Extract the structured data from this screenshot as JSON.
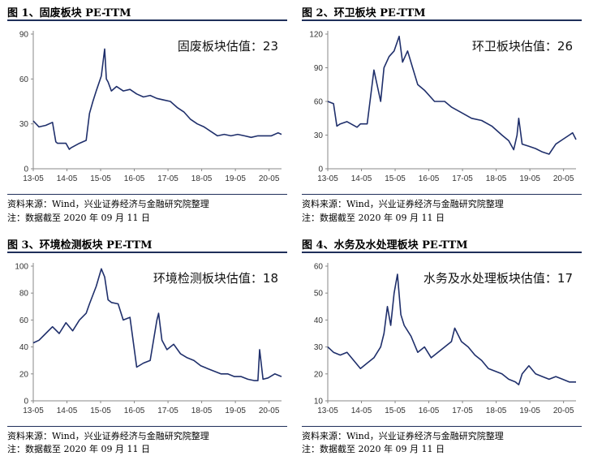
{
  "colors": {
    "line": "#1f2f6b",
    "rule": "#1f2f5a",
    "axis": "#888888"
  },
  "chart_data": [
    {
      "type": "line",
      "title": "图 1、固废板块 PE-TTM",
      "annotation": "固废板块估值：23",
      "source": "资料来源：Wind，兴业证券经济与金融研究院整理",
      "note": "注：数据截至 2020 年 09 月 11 日",
      "xlabel": "",
      "ylabel": "",
      "ylim": [
        0,
        90
      ],
      "yticks": [
        0,
        30,
        60,
        90
      ],
      "xlim": [
        2013.33,
        2020.7
      ],
      "xticks": [
        "13-05",
        "14-05",
        "15-05",
        "16-05",
        "17-05",
        "18-05",
        "19-05",
        "20-05"
      ],
      "x": [
        2013.33,
        2013.5,
        2013.7,
        2013.9,
        2014.0,
        2014.05,
        2014.3,
        2014.4,
        2014.45,
        2014.7,
        2014.9,
        2015.0,
        2015.1,
        2015.2,
        2015.35,
        2015.45,
        2015.5,
        2015.55,
        2015.65,
        2015.8,
        2016.0,
        2016.2,
        2016.4,
        2016.6,
        2016.8,
        2017.0,
        2017.2,
        2017.4,
        2017.6,
        2017.8,
        2018.0,
        2018.2,
        2018.4,
        2018.6,
        2018.8,
        2019.0,
        2019.2,
        2019.4,
        2019.6,
        2019.8,
        2020.0,
        2020.2,
        2020.4,
        2020.6,
        2020.7
      ],
      "values": [
        32,
        28,
        29,
        31,
        18,
        17,
        17,
        13,
        14,
        17,
        19,
        37,
        45,
        52,
        62,
        80,
        60,
        58,
        52,
        55,
        52,
        53,
        50,
        48,
        49,
        47,
        46,
        45,
        41,
        38,
        33,
        30,
        28,
        25,
        22,
        23,
        22,
        23,
        22,
        21,
        22,
        22,
        22,
        24,
        23
      ]
    },
    {
      "type": "line",
      "title": "图 2、环卫板块 PE-TTM",
      "annotation": "环卫板块估值：26",
      "source": "资料来源：Wind，兴业证券经济与金融研究院整理",
      "note": "注：数据截至 2020 年 09 月 11 日",
      "xlabel": "",
      "ylabel": "",
      "ylim": [
        0,
        120
      ],
      "yticks": [
        0,
        30,
        60,
        90,
        120
      ],
      "xlim": [
        2013.33,
        2020.7
      ],
      "xticks": [
        "13-05",
        "14-05",
        "15-05",
        "16-05",
        "17-05",
        "18-05",
        "19-05",
        "20-05"
      ],
      "x": [
        2013.33,
        2013.5,
        2013.6,
        2013.7,
        2013.9,
        2014.2,
        2014.3,
        2014.5,
        2014.7,
        2014.9,
        2015.0,
        2015.15,
        2015.3,
        2015.45,
        2015.55,
        2015.7,
        2015.85,
        2016.0,
        2016.2,
        2016.5,
        2016.8,
        2017.0,
        2017.3,
        2017.6,
        2017.9,
        2018.2,
        2018.5,
        2018.7,
        2018.85,
        2018.95,
        2019.0,
        2019.1,
        2019.3,
        2019.5,
        2019.7,
        2019.9,
        2020.1,
        2020.3,
        2020.5,
        2020.6,
        2020.7
      ],
      "values": [
        60,
        58,
        38,
        40,
        42,
        37,
        40,
        40,
        88,
        60,
        90,
        100,
        105,
        118,
        95,
        105,
        90,
        75,
        70,
        60,
        60,
        55,
        50,
        45,
        43,
        38,
        30,
        25,
        17,
        30,
        45,
        22,
        20,
        18,
        15,
        13,
        22,
        26,
        30,
        32,
        26
      ]
    },
    {
      "type": "line",
      "title": "图 3、环境检测板块 PE-TTM",
      "annotation": "环境检测板块估值：18",
      "source": "资料来源：Wind，兴业证券经济与金融研究院整理",
      "note": "注：数据截至 2020 年 09 月 11 日",
      "xlabel": "",
      "ylabel": "",
      "ylim": [
        0,
        100
      ],
      "yticks": [
        0,
        20,
        40,
        60,
        80,
        100
      ],
      "xlim": [
        2013.33,
        2020.7
      ],
      "xticks": [
        "13-05",
        "14-05",
        "15-05",
        "16-05",
        "17-05",
        "18-05",
        "19-05",
        "20-05"
      ],
      "x": [
        2013.33,
        2013.5,
        2013.7,
        2013.9,
        2014.1,
        2014.3,
        2014.5,
        2014.7,
        2014.9,
        2015.0,
        2015.2,
        2015.35,
        2015.45,
        2015.55,
        2015.65,
        2015.85,
        2016.0,
        2016.2,
        2016.4,
        2016.6,
        2016.8,
        2017.0,
        2017.05,
        2017.15,
        2017.3,
        2017.5,
        2017.7,
        2017.9,
        2018.1,
        2018.3,
        2018.5,
        2018.7,
        2018.9,
        2019.1,
        2019.3,
        2019.5,
        2019.7,
        2019.9,
        2020.0,
        2020.05,
        2020.15,
        2020.3,
        2020.5,
        2020.7
      ],
      "values": [
        43,
        45,
        50,
        55,
        50,
        58,
        52,
        60,
        65,
        72,
        85,
        98,
        92,
        75,
        73,
        72,
        60,
        62,
        25,
        28,
        30,
        60,
        65,
        45,
        38,
        42,
        35,
        32,
        30,
        26,
        24,
        22,
        20,
        20,
        18,
        18,
        16,
        15,
        15,
        38,
        16,
        17,
        20,
        18
      ]
    },
    {
      "type": "line",
      "title": "图 4、水务及水处理板块 PE-TTM",
      "annotation": "水务及水处理板块估值：17",
      "source": "资料来源：Wind，兴业证券经济与金融研究院整理",
      "note": "注：数据截至 2020 年 09 月 11 日",
      "xlabel": "",
      "ylabel": "",
      "ylim": [
        10,
        60
      ],
      "yticks": [
        10,
        20,
        30,
        40,
        50,
        60
      ],
      "xlim": [
        2013.33,
        2020.7
      ],
      "xticks": [
        "13-05",
        "14-05",
        "15-05",
        "16-05",
        "17-05",
        "18-05",
        "19-05",
        "20-05"
      ],
      "x": [
        2013.33,
        2013.5,
        2013.7,
        2013.9,
        2014.1,
        2014.3,
        2014.5,
        2014.7,
        2014.9,
        2015.0,
        2015.1,
        2015.2,
        2015.3,
        2015.4,
        2015.5,
        2015.6,
        2015.8,
        2016.0,
        2016.2,
        2016.4,
        2016.6,
        2016.8,
        2017.0,
        2017.1,
        2017.3,
        2017.5,
        2017.7,
        2017.9,
        2018.1,
        2018.3,
        2018.5,
        2018.7,
        2018.9,
        2019.0,
        2019.1,
        2019.3,
        2019.5,
        2019.7,
        2019.9,
        2020.1,
        2020.3,
        2020.5,
        2020.7
      ],
      "values": [
        30,
        28,
        27,
        28,
        25,
        22,
        24,
        26,
        30,
        35,
        45,
        38,
        50,
        57,
        42,
        38,
        34,
        28,
        30,
        26,
        28,
        30,
        32,
        37,
        32,
        30,
        27,
        25,
        22,
        21,
        20,
        18,
        17,
        16,
        20,
        23,
        20,
        19,
        18,
        19,
        18,
        17,
        17
      ]
    }
  ]
}
